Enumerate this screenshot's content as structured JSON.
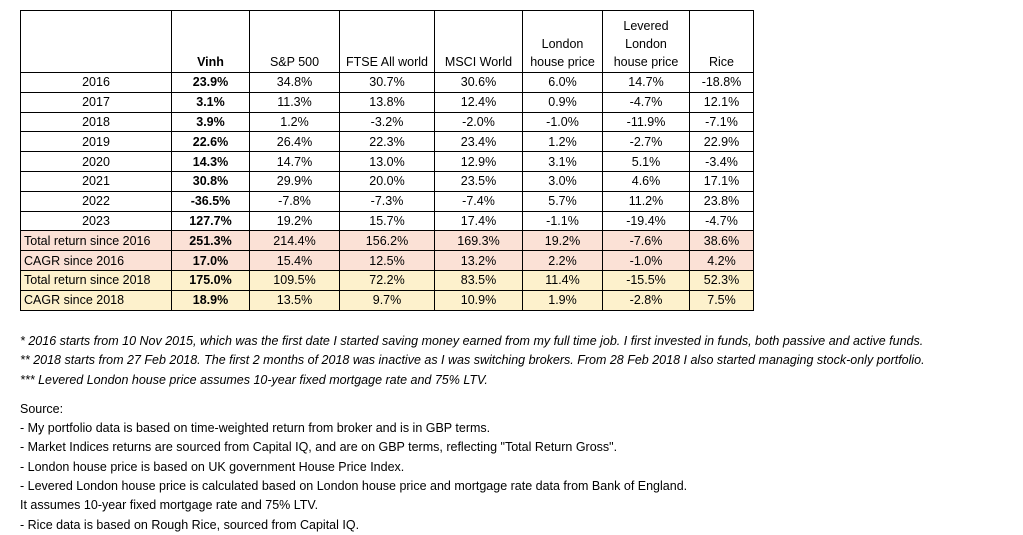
{
  "table": {
    "headers": [
      "",
      "Vinh",
      "S&P 500",
      "FTSE All world",
      "MSCI World",
      "London house price",
      "Levered London house price",
      "Rice"
    ],
    "header_lines": [
      [
        ""
      ],
      [
        "Vinh"
      ],
      [
        "S&P 500"
      ],
      [
        "FTSE All world"
      ],
      [
        "MSCI World"
      ],
      [
        "London",
        "house price"
      ],
      [
        "Levered",
        "London",
        "house price"
      ],
      [
        "Rice"
      ]
    ],
    "rows": [
      {
        "label": "2016",
        "values": [
          "23.9%",
          "34.8%",
          "30.7%",
          "30.6%",
          "6.0%",
          "14.7%",
          "-18.8%"
        ],
        "style": "plain"
      },
      {
        "label": "2017",
        "values": [
          "3.1%",
          "11.3%",
          "13.8%",
          "12.4%",
          "0.9%",
          "-4.7%",
          "12.1%"
        ],
        "style": "plain"
      },
      {
        "label": "2018",
        "values": [
          "3.9%",
          "1.2%",
          "-3.2%",
          "-2.0%",
          "-1.0%",
          "-11.9%",
          "-7.1%"
        ],
        "style": "plain"
      },
      {
        "label": "2019",
        "values": [
          "22.6%",
          "26.4%",
          "22.3%",
          "23.4%",
          "1.2%",
          "-2.7%",
          "22.9%"
        ],
        "style": "plain"
      },
      {
        "label": "2020",
        "values": [
          "14.3%",
          "14.7%",
          "13.0%",
          "12.9%",
          "3.1%",
          "5.1%",
          "-3.4%"
        ],
        "style": "plain"
      },
      {
        "label": "2021",
        "values": [
          "30.8%",
          "29.9%",
          "20.0%",
          "23.5%",
          "3.0%",
          "4.6%",
          "17.1%"
        ],
        "style": "plain"
      },
      {
        "label": "2022",
        "values": [
          "-36.5%",
          "-7.8%",
          "-7.3%",
          "-7.4%",
          "5.7%",
          "11.2%",
          "23.8%"
        ],
        "style": "plain"
      },
      {
        "label": "2023",
        "values": [
          "127.7%",
          "19.2%",
          "15.7%",
          "17.4%",
          "-1.1%",
          "-19.4%",
          "-4.7%"
        ],
        "style": "plain"
      },
      {
        "label": "Total return since 2016",
        "values": [
          "251.3%",
          "214.4%",
          "156.2%",
          "169.3%",
          "19.2%",
          "-7.6%",
          "38.6%"
        ],
        "style": "pink"
      },
      {
        "label": "CAGR since 2016",
        "values": [
          "17.0%",
          "15.4%",
          "12.5%",
          "13.2%",
          "2.2%",
          "-1.0%",
          "4.2%"
        ],
        "style": "pink"
      },
      {
        "label": "Total return since 2018",
        "values": [
          "175.0%",
          "109.5%",
          "72.2%",
          "83.5%",
          "11.4%",
          "-15.5%",
          "52.3%"
        ],
        "style": "yel"
      },
      {
        "label": "CAGR since 2018",
        "values": [
          "18.9%",
          "13.5%",
          "9.7%",
          "10.9%",
          "1.9%",
          "-2.8%",
          "7.5%"
        ],
        "style": "yel"
      }
    ]
  },
  "colors": {
    "pink": "#fbe1d6",
    "yellow": "#fdf1cc"
  },
  "footnotes": [
    "* 2016 starts from 10 Nov 2015, which was the first date I started saving money earned from my full time job. I first invested in funds, both passive and active funds.",
    "** 2018 starts from 27 Feb 2018. The first 2 months of 2018 was inactive as I was switching brokers. From 28 Feb 2018 I also started managing stock-only portfolio.",
    "*** Levered London house price assumes 10-year fixed mortgage rate and 75% LTV."
  ],
  "source": {
    "title": "Source:",
    "lines": [
      "- My portfolio data is based on time-weighted return from broker and is in GBP terms.",
      "- Market Indices returns are sourced from Capital IQ, and are on GBP terms, reflecting \"Total Return Gross\".",
      "- London house price is based on UK government House Price Index.",
      "- Levered London house price is calculated based on London house price and mortgage rate data from Bank of England.",
      "It assumes 10-year fixed mortgage rate and 75% LTV.",
      "- Rice data is based on Rough Rice, sourced from Capital IQ."
    ]
  }
}
